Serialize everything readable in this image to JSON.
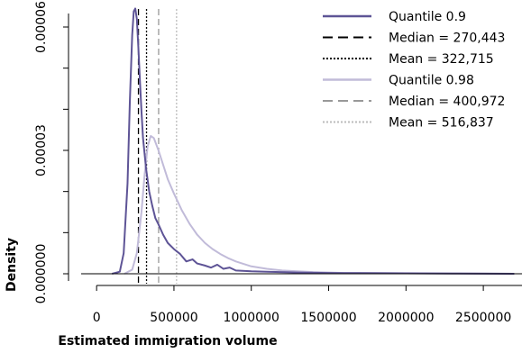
{
  "chart_data": {
    "type": "line",
    "title": "",
    "xlabel": "Estimated immigration volume",
    "ylabel": "Density",
    "xlim": [
      -100000,
      2750000
    ],
    "ylim": [
      0,
      6.75e-05
    ],
    "x_ticks": [
      0,
      500000,
      1000000,
      1500000,
      2000000,
      2500000
    ],
    "x_tick_labels": [
      "0",
      "500000",
      "1000000",
      "1500000",
      "2000000",
      "2500000"
    ],
    "y_ticks": [
      0,
      3e-05,
      6e-05
    ],
    "y_tick_labels": [
      "0.000000",
      "0.00003",
      "0.00006"
    ],
    "y_minor_ticks": [
      1e-05,
      2e-05,
      4e-05,
      5e-05
    ],
    "grid": false,
    "legend_position": "top-right",
    "colors": {
      "q90": "#5e5496",
      "q98": "#c1bbd9",
      "median90": "#000000",
      "mean90": "#000000",
      "median98": "#999999",
      "mean98": "#bbbbbb",
      "baseline": "#000000"
    },
    "series": [
      {
        "name": "Quantile 0.9",
        "x": [
          100000,
          150000,
          175000,
          200000,
          215000,
          230000,
          240000,
          250000,
          260000,
          270000,
          280000,
          290000,
          300000,
          320000,
          340000,
          360000,
          380000,
          400000,
          430000,
          460000,
          500000,
          540000,
          580000,
          620000,
          650000,
          700000,
          740000,
          780000,
          820000,
          860000,
          900000,
          1000000,
          1100000,
          1300000,
          1500000,
          1700000,
          2000000,
          2300000,
          2700000
        ],
        "y": [
          0,
          5e-07,
          5e-06,
          2.2e-05,
          4.2e-05,
          5.8e-05,
          6.38e-05,
          6.45e-05,
          6.2e-05,
          5.5e-05,
          4.7e-05,
          3.95e-05,
          3.3e-05,
          2.55e-05,
          2e-05,
          1.65e-05,
          1.35e-05,
          1.2e-05,
          9.5e-06,
          7.5e-06,
          6e-06,
          4.8e-06,
          3e-06,
          3.5e-06,
          2.5e-06,
          2e-06,
          1.5e-06,
          2.2e-06,
          1.2e-06,
          1.5e-06,
          8e-07,
          6e-07,
          5e-07,
          3e-07,
          2e-07,
          1.5e-07,
          1e-07,
          5e-08,
          0
        ]
      },
      {
        "name": "Quantile 0.98",
        "x": [
          180000,
          230000,
          260000,
          290000,
          310000,
          330000,
          350000,
          370000,
          400000,
          430000,
          460000,
          500000,
          550000,
          600000,
          650000,
          700000,
          750000,
          800000,
          850000,
          900000,
          1000000,
          1100000,
          1200000,
          1400000,
          1600000,
          1800000,
          2100000,
          2500000,
          2700000
        ],
        "y": [
          0,
          1e-06,
          5e-06,
          1.5e-05,
          2.4e-05,
          3.1e-05,
          3.35e-05,
          3.3e-05,
          3e-05,
          2.65e-05,
          2.3e-05,
          1.95e-05,
          1.55e-05,
          1.22e-05,
          9.5e-06,
          7.5e-06,
          6e-06,
          4.8e-06,
          3.8e-06,
          3e-06,
          1.8e-06,
          1.2e-06,
          8e-07,
          4e-07,
          2e-07,
          1.5e-07,
          1e-07,
          5e-08,
          0
        ]
      }
    ],
    "reference_lines": [
      {
        "name": "Median = 270,443",
        "x": 270443,
        "style": "dashed",
        "color": "#000000"
      },
      {
        "name": "Mean = 322,715",
        "x": 322715,
        "style": "dotted",
        "color": "#000000"
      },
      {
        "name": "Median = 400,972",
        "x": 400972,
        "style": "dashed",
        "color": "#999999"
      },
      {
        "name": "Mean = 516,837",
        "x": 516837,
        "style": "dotted",
        "color": "#bbbbbb"
      }
    ],
    "legend": [
      {
        "label": "Quantile 0.9",
        "style": "solid",
        "color": "#5e5496"
      },
      {
        "label": "Median = 270,443",
        "style": "dashed",
        "color": "#000000"
      },
      {
        "label": "Mean = 322,715",
        "style": "dotted",
        "color": "#000000"
      },
      {
        "label": "Quantile 0.98",
        "style": "solid",
        "color": "#c1bbd9"
      },
      {
        "label": "Median = 400,972",
        "style": "dashed",
        "color": "#999999"
      },
      {
        "label": "Mean = 516,837",
        "style": "dotted",
        "color": "#bbbbbb"
      }
    ]
  }
}
